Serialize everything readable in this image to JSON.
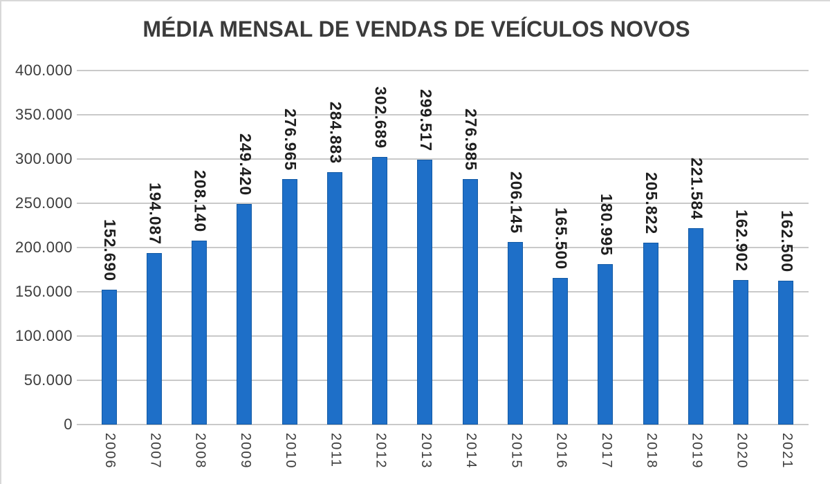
{
  "chart_data": {
    "type": "bar",
    "title": "MÉDIA MENSAL DE VENDAS DE VEÍCULOS NOVOS",
    "categories": [
      "2006",
      "2007",
      "2008",
      "2009",
      "2010",
      "2011",
      "2012",
      "2013",
      "2014",
      "2015",
      "2016",
      "2017",
      "2018",
      "2019",
      "2020",
      "2021"
    ],
    "values": [
      152690,
      194087,
      208140,
      249420,
      276965,
      284883,
      302689,
      299517,
      276985,
      206145,
      165500,
      180995,
      205822,
      221584,
      162902,
      162500
    ],
    "value_labels": [
      "152.690",
      "194.087",
      "208.140",
      "249.420",
      "276.965",
      "284.883",
      "302.689",
      "299.517",
      "276.985",
      "206.145",
      "165.500",
      "180.995",
      "205.822",
      "221.584",
      "162.902",
      "162.500"
    ],
    "xlabel": "",
    "ylabel": "",
    "ylim": [
      0,
      400000
    ],
    "ytick_step": 50000,
    "ytick_labels_bottom_up": [
      "0",
      "50.000",
      "100.000",
      "150.000",
      "200.000",
      "250.000",
      "300.000",
      "350.000",
      "400.000"
    ],
    "grid": "horizontal",
    "legend": "none",
    "data_label_rotation": "90deg clockwise (read top-down)",
    "x_label_rotation": "90deg clockwise (read top-down)",
    "bar_color": "#1e6fc8",
    "bar_border_color": "#1159a4",
    "gridline_color": "#c9c9c9",
    "axis_text_color": "#3c3c3c",
    "data_label_color": "#1e1e1e",
    "title_color": "#3b3b3b"
  }
}
